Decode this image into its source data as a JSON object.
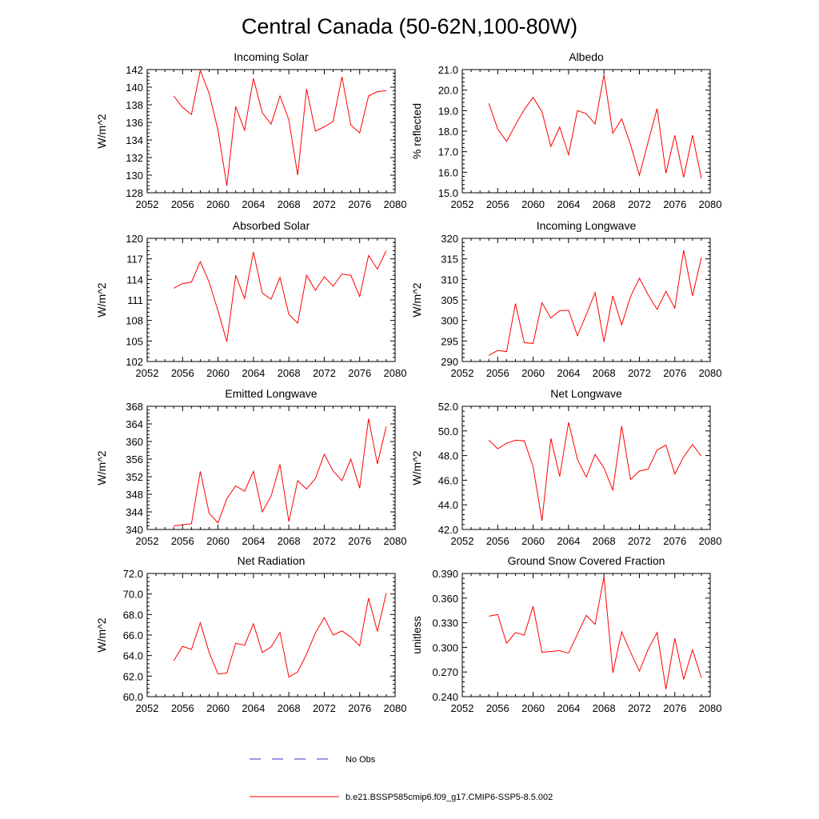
{
  "figure": {
    "title": "Central Canada (50-62N,100-80W)",
    "legend": [
      {
        "label": "No Obs",
        "color": "#3333cc",
        "style": "dashed"
      },
      {
        "label": "b.e21.BSSP585cmip6.f09_g17.CMIP6-SSP5-8.5.002",
        "color": "#ff0000",
        "style": "solid"
      }
    ]
  },
  "chart_data": [
    {
      "type": "line",
      "title": "Incoming Solar",
      "xlabel": "",
      "ylabel": "W/m^2",
      "xlim": [
        2052,
        2080
      ],
      "ylim": [
        128,
        142
      ],
      "xticks": [
        "2052",
        "2056",
        "2060",
        "2064",
        "2068",
        "2072",
        "2076",
        "2080"
      ],
      "yticks": [
        "128",
        "130",
        "132",
        "134",
        "136",
        "138",
        "140",
        "142"
      ],
      "x": [
        2055,
        2056,
        2057,
        2058,
        2059,
        2060,
        2061,
        2062,
        2063,
        2064,
        2065,
        2066,
        2067,
        2068,
        2069,
        2070,
        2071,
        2072,
        2073,
        2074,
        2075,
        2076,
        2077,
        2078,
        2079
      ],
      "series": [
        {
          "values": [
            139.0,
            137.7,
            136.9,
            141.9,
            139.3,
            135.1,
            128.8,
            137.8,
            135.1,
            141.0,
            137.1,
            135.8,
            139.0,
            136.3,
            130.0,
            139.8,
            135.0,
            135.5,
            136.1,
            141.2,
            135.7,
            134.8,
            139.0,
            139.5,
            139.6
          ]
        }
      ]
    },
    {
      "type": "line",
      "title": "Albedo",
      "xlabel": "",
      "ylabel": "% reflected",
      "xlim": [
        2052,
        2080
      ],
      "ylim": [
        15.0,
        21.0
      ],
      "xticks": [
        "2052",
        "2056",
        "2060",
        "2064",
        "2068",
        "2072",
        "2076",
        "2080"
      ],
      "yticks": [
        "15.0",
        "16.0",
        "17.0",
        "18.0",
        "19.0",
        "20.0",
        "21.0"
      ],
      "x": [
        2055,
        2056,
        2057,
        2058,
        2059,
        2060,
        2061,
        2062,
        2063,
        2064,
        2065,
        2066,
        2067,
        2068,
        2069,
        2070,
        2071,
        2072,
        2073,
        2074,
        2075,
        2076,
        2077,
        2078,
        2079
      ],
      "series": [
        {
          "values": [
            19.35,
            18.1,
            17.5,
            18.3,
            19.05,
            19.65,
            18.95,
            17.25,
            18.2,
            16.85,
            19.0,
            18.85,
            18.35,
            20.75,
            17.9,
            18.6,
            17.35,
            15.85,
            17.5,
            19.1,
            15.95,
            17.8,
            15.75,
            17.8,
            15.7
          ]
        }
      ]
    },
    {
      "type": "line",
      "title": "Absorbed Solar",
      "xlabel": "",
      "ylabel": "W/m^2",
      "xlim": [
        2052,
        2080
      ],
      "ylim": [
        102,
        120
      ],
      "xticks": [
        "2052",
        "2056",
        "2060",
        "2064",
        "2068",
        "2072",
        "2076",
        "2080"
      ],
      "yticks": [
        "102",
        "105",
        "108",
        "111",
        "114",
        "117",
        "120"
      ],
      "x": [
        2055,
        2056,
        2057,
        2058,
        2059,
        2060,
        2061,
        2062,
        2063,
        2064,
        2065,
        2066,
        2067,
        2068,
        2069,
        2070,
        2071,
        2072,
        2073,
        2074,
        2075,
        2076,
        2077,
        2078,
        2079
      ],
      "series": [
        {
          "values": [
            112.7,
            113.4,
            113.6,
            116.6,
            113.6,
            109.4,
            104.9,
            114.6,
            111.2,
            118.0,
            112.0,
            111.1,
            114.3,
            108.9,
            107.6,
            114.6,
            112.4,
            114.4,
            113.0,
            114.8,
            114.6,
            111.5,
            117.5,
            115.5,
            118.2
          ]
        }
      ]
    },
    {
      "type": "line",
      "title": "Incoming Longwave",
      "xlabel": "",
      "ylabel": "W/m^2",
      "xlim": [
        2052,
        2080
      ],
      "ylim": [
        290,
        320
      ],
      "xticks": [
        "2052",
        "2056",
        "2060",
        "2064",
        "2068",
        "2072",
        "2076",
        "2080"
      ],
      "yticks": [
        "290",
        "295",
        "300",
        "305",
        "310",
        "315",
        "320"
      ],
      "x": [
        2055,
        2056,
        2057,
        2058,
        2059,
        2060,
        2061,
        2062,
        2063,
        2064,
        2065,
        2066,
        2067,
        2068,
        2069,
        2070,
        2071,
        2072,
        2073,
        2074,
        2075,
        2076,
        2077,
        2078,
        2079
      ],
      "series": [
        {
          "values": [
            291.5,
            292.7,
            292.4,
            304.1,
            294.6,
            294.4,
            304.3,
            300.6,
            302.4,
            302.5,
            296.3,
            301.4,
            306.8,
            294.8,
            306.0,
            298.9,
            305.8,
            310.3,
            306.2,
            302.7,
            307.1,
            303.0,
            317.1,
            306.0,
            315.3
          ]
        }
      ]
    },
    {
      "type": "line",
      "title": "Emitted Longwave",
      "xlabel": "",
      "ylabel": "W/m^2",
      "xlim": [
        2052,
        2080
      ],
      "ylim": [
        340,
        368
      ],
      "xticks": [
        "2052",
        "2056",
        "2060",
        "2064",
        "2068",
        "2072",
        "2076",
        "2080"
      ],
      "yticks": [
        "340",
        "344",
        "348",
        "352",
        "356",
        "360",
        "364",
        "368"
      ],
      "x": [
        2055,
        2056,
        2057,
        2058,
        2059,
        2060,
        2061,
        2062,
        2063,
        2064,
        2065,
        2066,
        2067,
        2068,
        2069,
        2070,
        2071,
        2072,
        2073,
        2074,
        2075,
        2076,
        2077,
        2078,
        2079
      ],
      "series": [
        {
          "values": [
            340.8,
            341.1,
            341.3,
            353.2,
            343.7,
            341.5,
            347.0,
            349.9,
            348.7,
            353.2,
            344.0,
            347.6,
            354.8,
            341.8,
            351.1,
            349.2,
            351.6,
            357.1,
            353.3,
            351.1,
            356.0,
            349.4,
            365.2,
            354.9,
            363.4
          ]
        }
      ]
    },
    {
      "type": "line",
      "title": "Net Longwave",
      "xlabel": "",
      "ylabel": "W/m^2",
      "xlim": [
        2052,
        2080
      ],
      "ylim": [
        42.0,
        52.0
      ],
      "xticks": [
        "2052",
        "2056",
        "2060",
        "2064",
        "2068",
        "2072",
        "2076",
        "2080"
      ],
      "yticks": [
        "42.0",
        "44.0",
        "46.0",
        "48.0",
        "50.0",
        "52.0"
      ],
      "x": [
        2055,
        2056,
        2057,
        2058,
        2059,
        2060,
        2061,
        2062,
        2063,
        2064,
        2065,
        2066,
        2067,
        2068,
        2069,
        2070,
        2071,
        2072,
        2073,
        2074,
        2075,
        2076,
        2077,
        2078,
        2079
      ],
      "series": [
        {
          "values": [
            49.25,
            48.55,
            49.0,
            49.25,
            49.2,
            47.1,
            42.7,
            49.4,
            46.3,
            50.7,
            47.7,
            46.25,
            48.1,
            47.0,
            45.2,
            50.4,
            46.05,
            46.75,
            46.9,
            48.45,
            48.85,
            46.5,
            47.9,
            48.9,
            47.95
          ]
        }
      ]
    },
    {
      "type": "line",
      "title": "Net Radiation",
      "xlabel": "",
      "ylabel": "W/m^2",
      "xlim": [
        2052,
        2080
      ],
      "ylim": [
        60.0,
        72.0
      ],
      "xticks": [
        "2052",
        "2056",
        "2060",
        "2064",
        "2068",
        "2072",
        "2076",
        "2080"
      ],
      "yticks": [
        "60.0",
        "62.0",
        "64.0",
        "66.0",
        "68.0",
        "70.0",
        "72.0"
      ],
      "x": [
        2055,
        2056,
        2057,
        2058,
        2059,
        2060,
        2061,
        2062,
        2063,
        2064,
        2065,
        2066,
        2067,
        2068,
        2069,
        2070,
        2071,
        2072,
        2073,
        2074,
        2075,
        2076,
        2077,
        2078,
        2079
      ],
      "series": [
        {
          "values": [
            63.5,
            64.9,
            64.6,
            67.2,
            64.3,
            62.2,
            62.3,
            65.2,
            65.0,
            67.1,
            64.3,
            64.85,
            66.25,
            61.9,
            62.4,
            64.15,
            66.2,
            67.7,
            66.0,
            66.4,
            65.8,
            64.95,
            69.6,
            66.35,
            70.1
          ]
        }
      ]
    },
    {
      "type": "line",
      "title": "Ground Snow Covered Fraction",
      "xlabel": "",
      "ylabel": "unitless",
      "xlim": [
        2052,
        2080
      ],
      "ylim": [
        0.24,
        0.39
      ],
      "xticks": [
        "2052",
        "2056",
        "2060",
        "2064",
        "2068",
        "2072",
        "2076",
        "2080"
      ],
      "yticks": [
        "0.240",
        "0.270",
        "0.300",
        "0.330",
        "0.360",
        "0.390"
      ],
      "x": [
        2055,
        2056,
        2057,
        2058,
        2059,
        2060,
        2061,
        2062,
        2063,
        2064,
        2065,
        2066,
        2067,
        2068,
        2069,
        2070,
        2071,
        2072,
        2073,
        2074,
        2075,
        2076,
        2077,
        2078,
        2079
      ],
      "series": [
        {
          "values": [
            0.338,
            0.34,
            0.305,
            0.318,
            0.315,
            0.35,
            0.294,
            0.295,
            0.296,
            0.293,
            0.316,
            0.339,
            0.328,
            0.386,
            0.269,
            0.319,
            0.294,
            0.271,
            0.298,
            0.318,
            0.249,
            0.311,
            0.261,
            0.297,
            0.263
          ]
        }
      ]
    }
  ]
}
